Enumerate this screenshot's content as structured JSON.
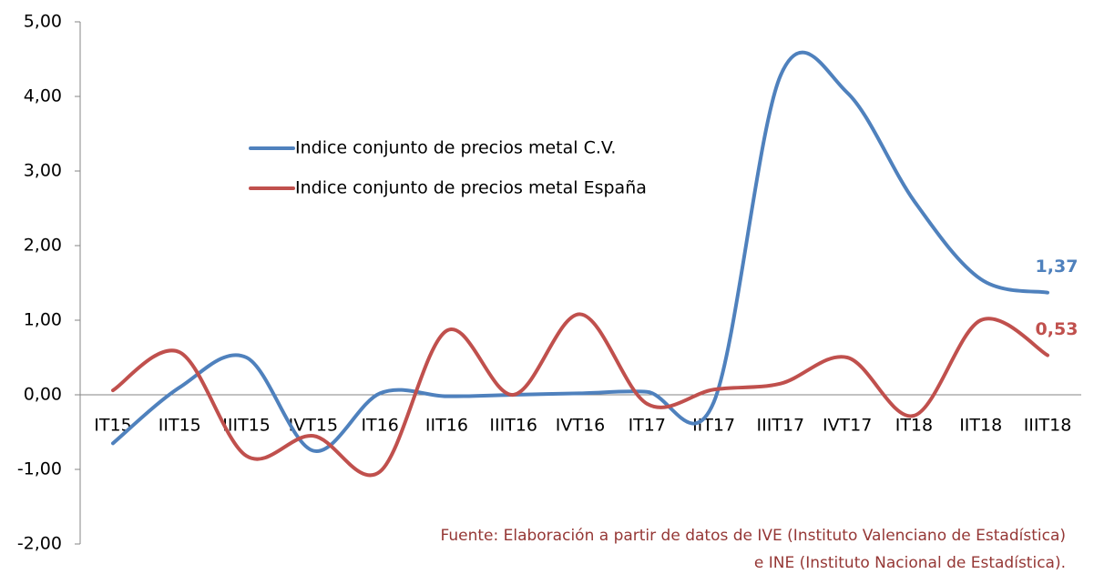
{
  "chart_data": {
    "type": "line",
    "categories": [
      "IT15",
      "IIT15",
      "IIIT15",
      "IVT15",
      "IT16",
      "IIT16",
      "IIIT16",
      "IVT16",
      "IT17",
      "IIT17",
      "IIIT17",
      "IVT17",
      "IT18",
      "IIT18",
      "IIIT18"
    ],
    "series": [
      {
        "name": "Indice conjunto de precios metal C.V.",
        "color": "#4f81bd",
        "values": [
          -0.65,
          0.1,
          0.5,
          -0.75,
          0.02,
          -0.02,
          0.0,
          0.02,
          0.04,
          -0.1,
          4.28,
          4.05,
          2.6,
          1.55,
          1.37
        ],
        "value_labels": [
          null,
          null,
          null,
          null,
          null,
          null,
          null,
          null,
          null,
          null,
          null,
          null,
          null,
          null,
          "1,37"
        ]
      },
      {
        "name": "Indice conjunto de precios metal España",
        "color": "#c0504d",
        "values": [
          0.06,
          0.57,
          -0.82,
          -0.55,
          -1.03,
          0.86,
          0.0,
          1.08,
          -0.12,
          0.07,
          0.15,
          0.5,
          -0.28,
          1.0,
          0.53
        ],
        "value_labels": [
          null,
          null,
          null,
          null,
          null,
          null,
          null,
          null,
          null,
          null,
          null,
          null,
          null,
          null,
          "0,53"
        ]
      }
    ],
    "ylim": [
      -2,
      5
    ],
    "yticks": [
      {
        "value": -2,
        "label": "-2,00"
      },
      {
        "value": -1,
        "label": "-1,00"
      },
      {
        "value": 0,
        "label": "0,00"
      },
      {
        "value": 1,
        "label": "1,00"
      },
      {
        "value": 2,
        "label": "2,00"
      },
      {
        "value": 3,
        "label": "3,00"
      },
      {
        "value": 4,
        "label": "4,00"
      },
      {
        "value": 5,
        "label": "5,00"
      }
    ],
    "smooth": true,
    "annotation": [
      "Fuente: Elaboración a partir de datos de IVE (Instituto Valenciano de Estadística)",
      "e INE (Instituto Nacional de Estadística)."
    ]
  }
}
